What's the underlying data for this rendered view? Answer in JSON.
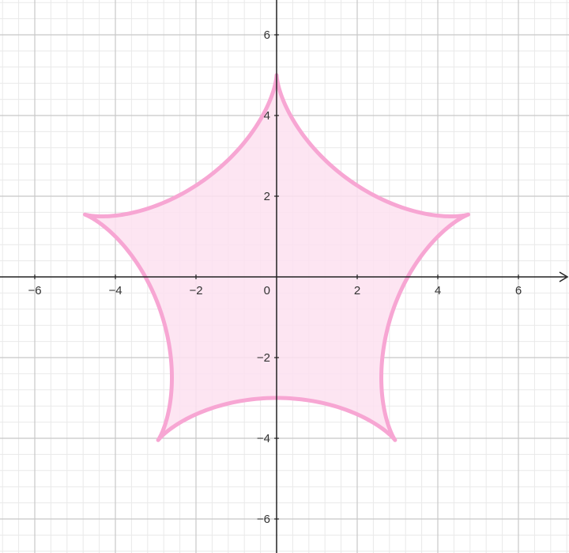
{
  "chart_data": {
    "type": "area",
    "title": "",
    "xlabel": "",
    "ylabel": "",
    "xlim": [
      -6.9,
      7.2
    ],
    "ylim": [
      -6.8,
      6.9
    ],
    "grid": true,
    "minor_grid": true,
    "legend": "none",
    "x_ticks": [
      -6,
      -4,
      -2,
      2,
      4,
      6
    ],
    "y_ticks": [
      -6,
      -4,
      -2,
      2,
      4,
      6
    ],
    "x_tick_labels": [
      "−6",
      "−4",
      "−2",
      "2",
      "4",
      "6"
    ],
    "y_tick_labels": [
      "−6",
      "−4",
      "−2",
      "2",
      "4",
      "6"
    ],
    "origin_label": "0",
    "shape": {
      "name": "",
      "description_type": "five-cusp hypocycloid",
      "cusps": [
        {
          "x": 0,
          "y": 5
        },
        {
          "x": 4.76,
          "y": 1.55
        },
        {
          "x": 2.94,
          "y": -4.05
        },
        {
          "x": -2.94,
          "y": -4.05
        },
        {
          "x": -4.76,
          "y": 1.55
        }
      ],
      "vertex_distance": 5,
      "inner_distance": 3,
      "series": []
    },
    "colors": {
      "curve": "#f7a6d3",
      "fill": "#fde1f0",
      "major_grid": "#c8c8c8",
      "minor_grid": "#e9e9e9",
      "axis": "#222222"
    }
  }
}
